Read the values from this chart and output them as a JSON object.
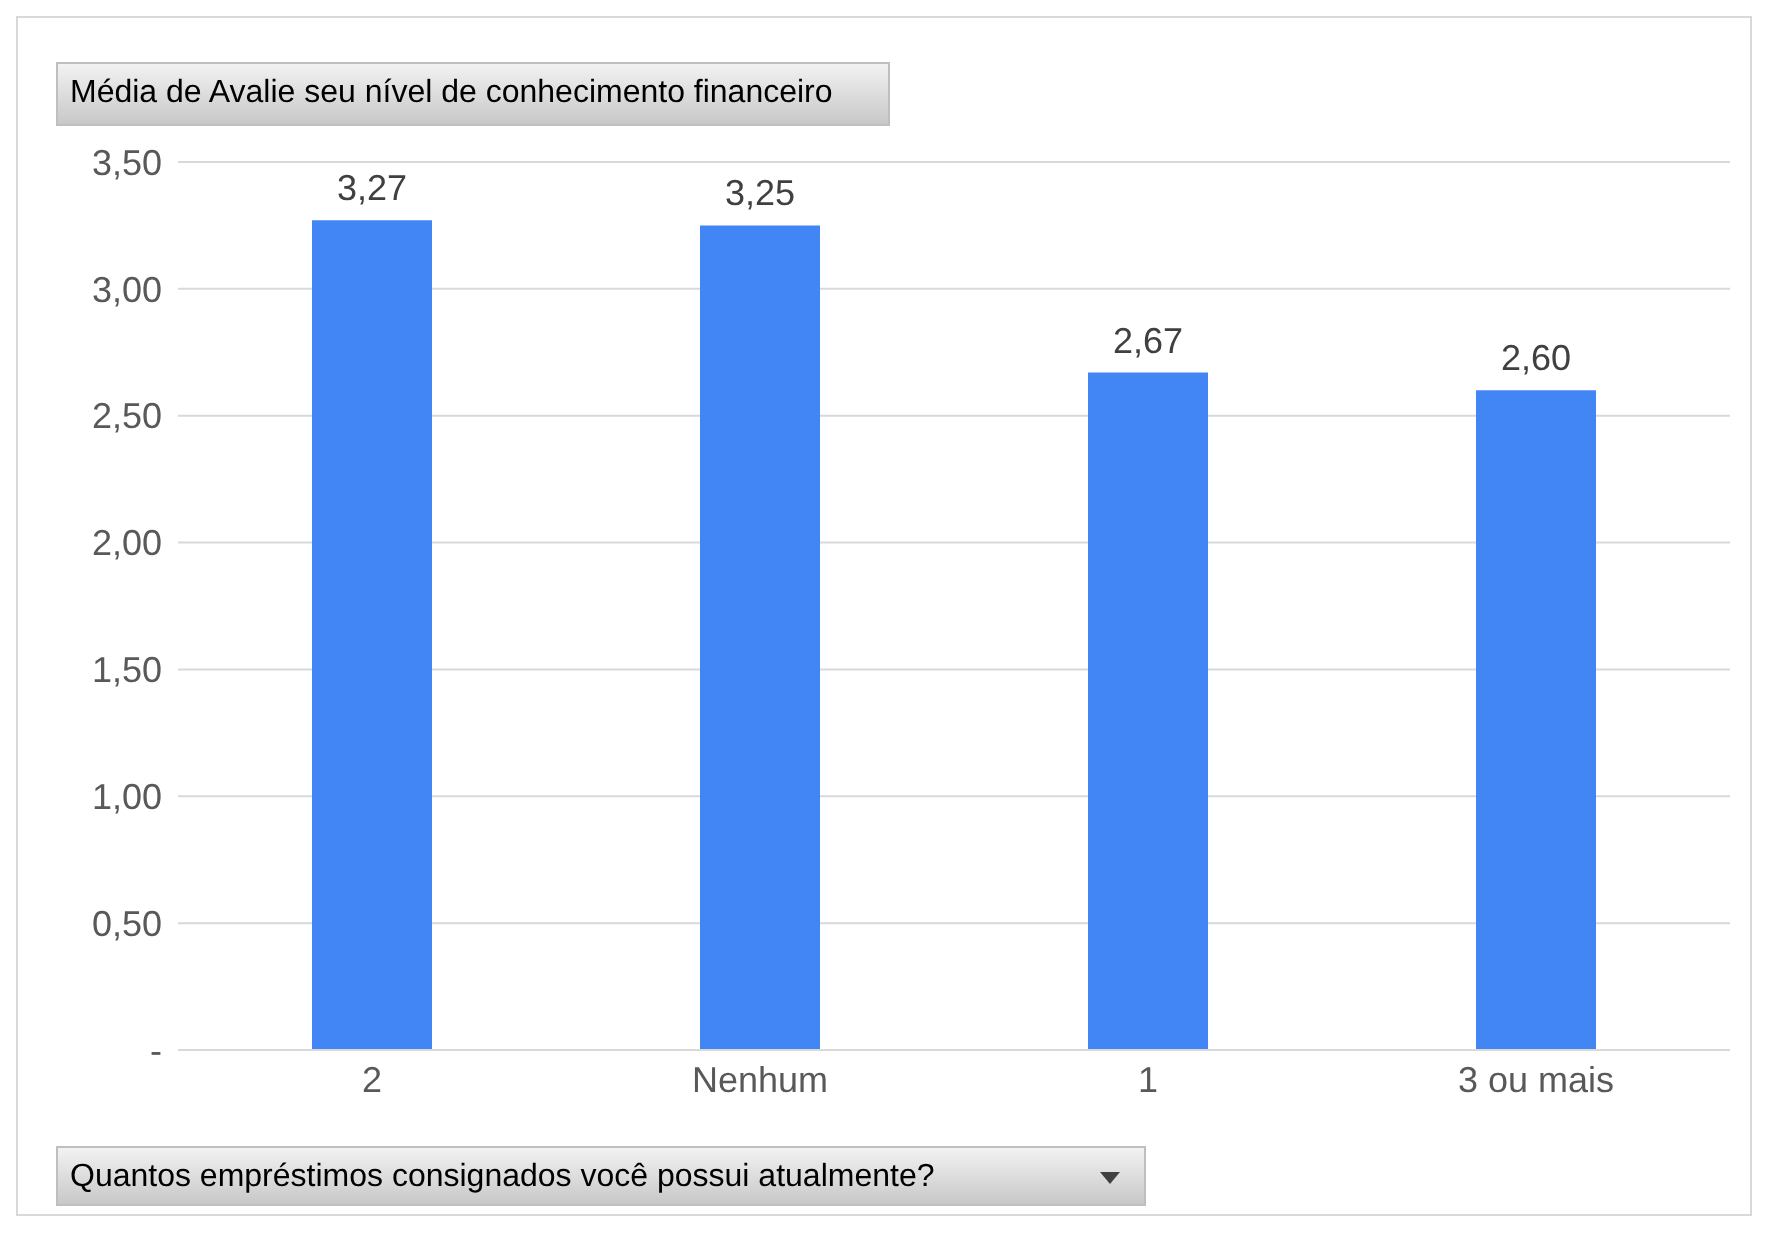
{
  "chart_data": {
    "type": "bar",
    "title": "Média de Avalie seu nível de conhecimento financeiro",
    "xlabel": "Quantos empréstimos consignados você possui atualmente?",
    "categories": [
      "2",
      "Nenhum",
      "1",
      "3 ou mais"
    ],
    "values": [
      3.27,
      3.25,
      2.67,
      2.6
    ],
    "value_labels": [
      "3,27",
      "3,25",
      "2,67",
      "2,60"
    ],
    "color": "#4285f4",
    "ylim": [
      0,
      3.5
    ],
    "yticks": [
      {
        "value": 0,
        "label": "-"
      },
      {
        "value": 0.5,
        "label": "0,50"
      },
      {
        "value": 1,
        "label": "1,00"
      },
      {
        "value": 1.5,
        "label": "1,50"
      },
      {
        "value": 2,
        "label": "2,00"
      },
      {
        "value": 2.5,
        "label": "2,50"
      },
      {
        "value": 3,
        "label": "3,00"
      },
      {
        "value": 3.5,
        "label": "3,50"
      }
    ],
    "grid": "y",
    "legend": false
  }
}
